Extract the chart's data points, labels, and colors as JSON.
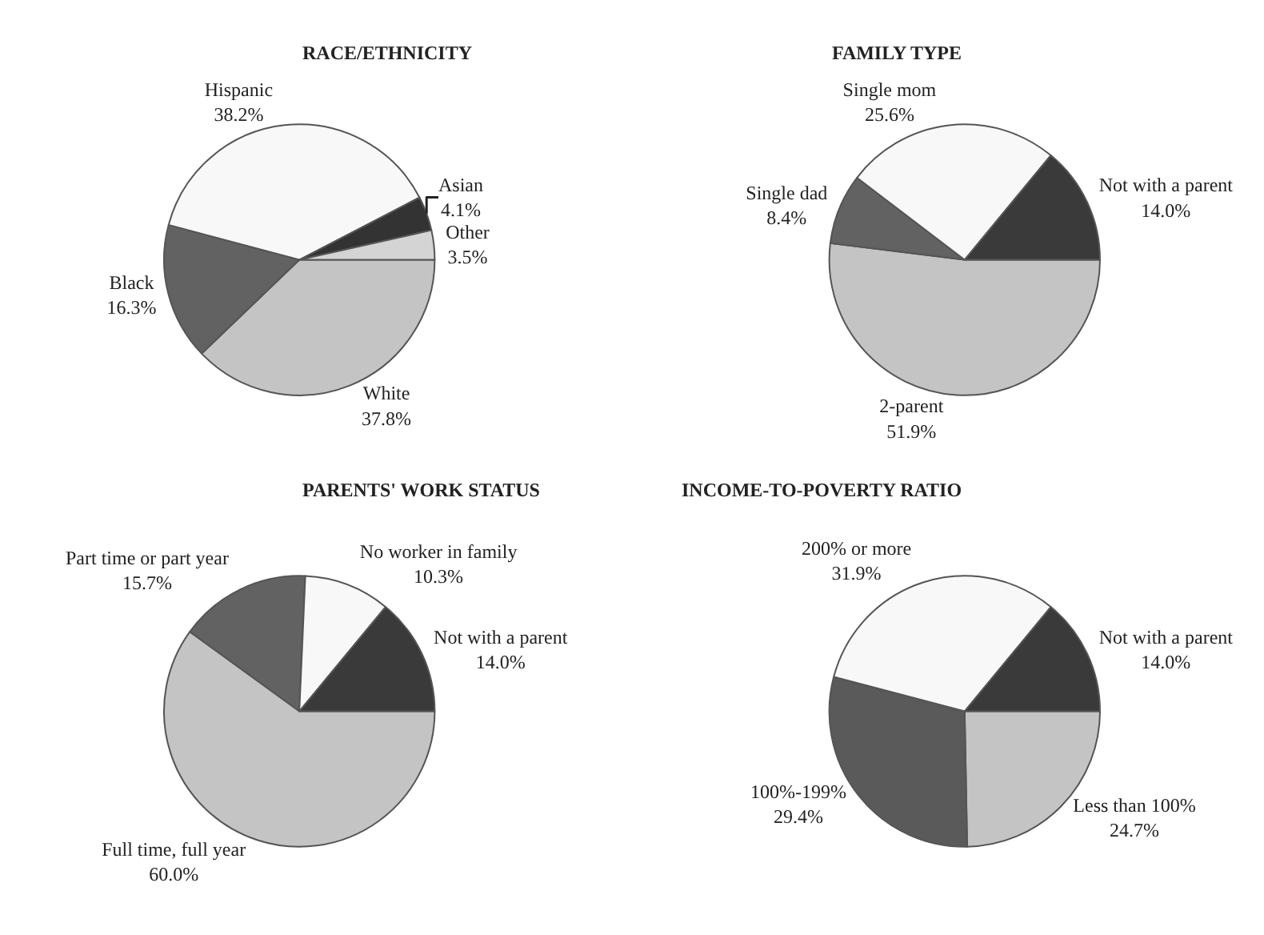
{
  "chart_data": [
    {
      "type": "pie",
      "title": "RACE/ETHNICITY",
      "categories": [
        "White",
        "Black",
        "Hispanic",
        "Asian",
        "Other"
      ],
      "values": [
        37.8,
        16.3,
        38.2,
        4.1,
        3.5
      ],
      "value_labels": [
        "37.8%",
        "16.3%",
        "38.2%",
        "4.1%",
        "3.5%"
      ],
      "colors": [
        "#c4c4c4",
        "#626262",
        "#f8f8f8",
        "#333333",
        "#d4d4d4"
      ],
      "legend": false
    },
    {
      "type": "pie",
      "title": "FAMILY TYPE",
      "categories": [
        "2-parent",
        "Single dad",
        "Single mom",
        "Not with a parent"
      ],
      "values": [
        51.9,
        8.4,
        25.6,
        14.0
      ],
      "value_labels": [
        "51.9%",
        "8.4%",
        "25.6%",
        "14.0%"
      ],
      "colors": [
        "#c4c4c4",
        "#626262",
        "#f8f8f8",
        "#3a3a3a"
      ],
      "legend": false
    },
    {
      "type": "pie",
      "title": "PARENTS' WORK STATUS",
      "categories": [
        "Full time, full year",
        "Part time or part year",
        "No worker in family",
        "Not with a parent"
      ],
      "values": [
        60.0,
        15.7,
        10.3,
        14.0
      ],
      "value_labels": [
        "60.0%",
        "15.7%",
        "10.3%",
        "14.0%"
      ],
      "colors": [
        "#c4c4c4",
        "#626262",
        "#f8f8f8",
        "#3a3a3a"
      ],
      "legend": false
    },
    {
      "type": "pie",
      "title": "INCOME-TO-POVERTY RATIO",
      "categories": [
        "Less than 100%",
        "100%-199%",
        "200% or more",
        "Not with a parent"
      ],
      "values": [
        24.7,
        29.4,
        31.9,
        14.0
      ],
      "value_labels": [
        "24.7%",
        "29.4%",
        "31.9%",
        "14.0%"
      ],
      "colors": [
        "#c4c4c4",
        "#5a5a5a",
        "#f8f8f8",
        "#3a3a3a"
      ],
      "legend": false
    }
  ]
}
